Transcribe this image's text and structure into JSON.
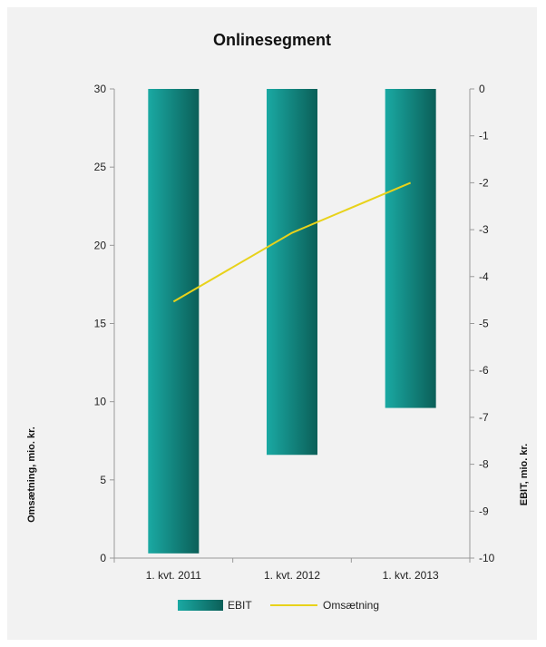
{
  "chart_data": {
    "type": "bar",
    "title": "Onlinesegment",
    "categories": [
      "1. kvt. 2011",
      "1. kvt. 2012",
      "1. kvt. 2013"
    ],
    "series": [
      {
        "name": "EBIT",
        "type": "bar",
        "axis": "right",
        "values": [
          -9.9,
          -7.8,
          -6.8
        ]
      },
      {
        "name": "Omsætning",
        "type": "line",
        "axis": "left",
        "values": [
          16.4,
          20.8,
          24.0
        ]
      }
    ],
    "y_left": {
      "label": "Omsætning, mio. kr.",
      "min": 0,
      "max": 30,
      "step": 5
    },
    "y_right": {
      "label": "EBIT, mio. kr.",
      "min": -10,
      "max": 0,
      "step": 1
    },
    "legend": "bottom",
    "grid": false,
    "colors": {
      "bar_light": "#1aa9a3",
      "bar_dark": "#0b5f58",
      "line": "#e8d21a",
      "background": "#f2f2f2",
      "axis": "#999999"
    }
  }
}
